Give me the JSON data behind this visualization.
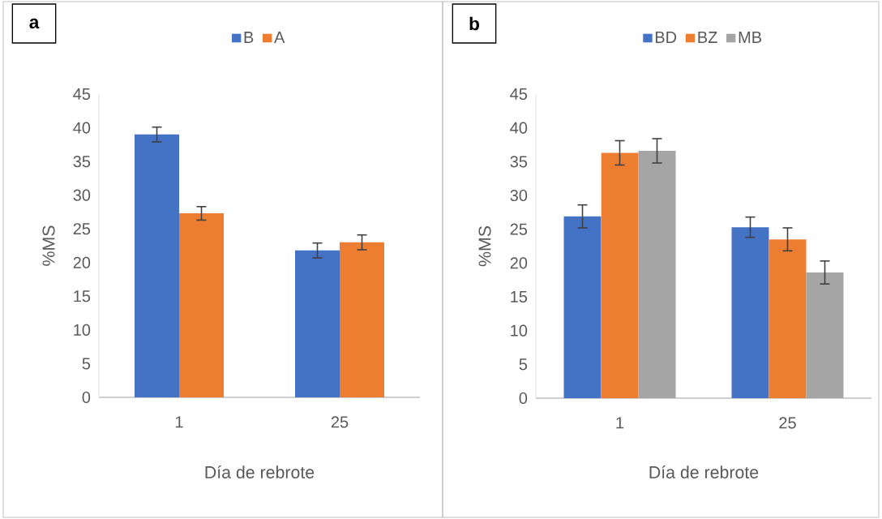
{
  "chart_data": [
    {
      "type": "bar",
      "title": "a",
      "xlabel": "Día de rebrote",
      "ylabel": "%MS",
      "categories": [
        "1",
        "25"
      ],
      "series": [
        {
          "name": "B",
          "color": "#4472c4",
          "values": [
            39.0,
            21.8
          ],
          "errors": [
            1.1,
            1.1
          ]
        },
        {
          "name": "A",
          "color": "#ed7d31",
          "values": [
            27.3,
            23.0
          ],
          "errors": [
            1.0,
            1.1
          ]
        }
      ],
      "ylim": [
        0,
        45
      ],
      "yticks": [
        0,
        5,
        10,
        15,
        20,
        25,
        30,
        35,
        40,
        45
      ],
      "legend": "top"
    },
    {
      "type": "bar",
      "title": "b",
      "xlabel": "Día de rebrote",
      "ylabel": "%MS",
      "categories": [
        "1",
        "25"
      ],
      "series": [
        {
          "name": "BD",
          "color": "#4472c4",
          "values": [
            26.9,
            25.3
          ],
          "errors": [
            1.7,
            1.5
          ]
        },
        {
          "name": "BZ",
          "color": "#ed7d31",
          "values": [
            36.3,
            23.5
          ],
          "errors": [
            1.8,
            1.7
          ]
        },
        {
          "name": "MB",
          "color": "#a5a5a5",
          "values": [
            36.6,
            18.6
          ],
          "errors": [
            1.8,
            1.7
          ]
        }
      ],
      "ylim": [
        0,
        45
      ],
      "yticks": [
        0,
        5,
        10,
        15,
        20,
        25,
        30,
        35,
        40,
        45
      ],
      "legend": "top"
    }
  ]
}
